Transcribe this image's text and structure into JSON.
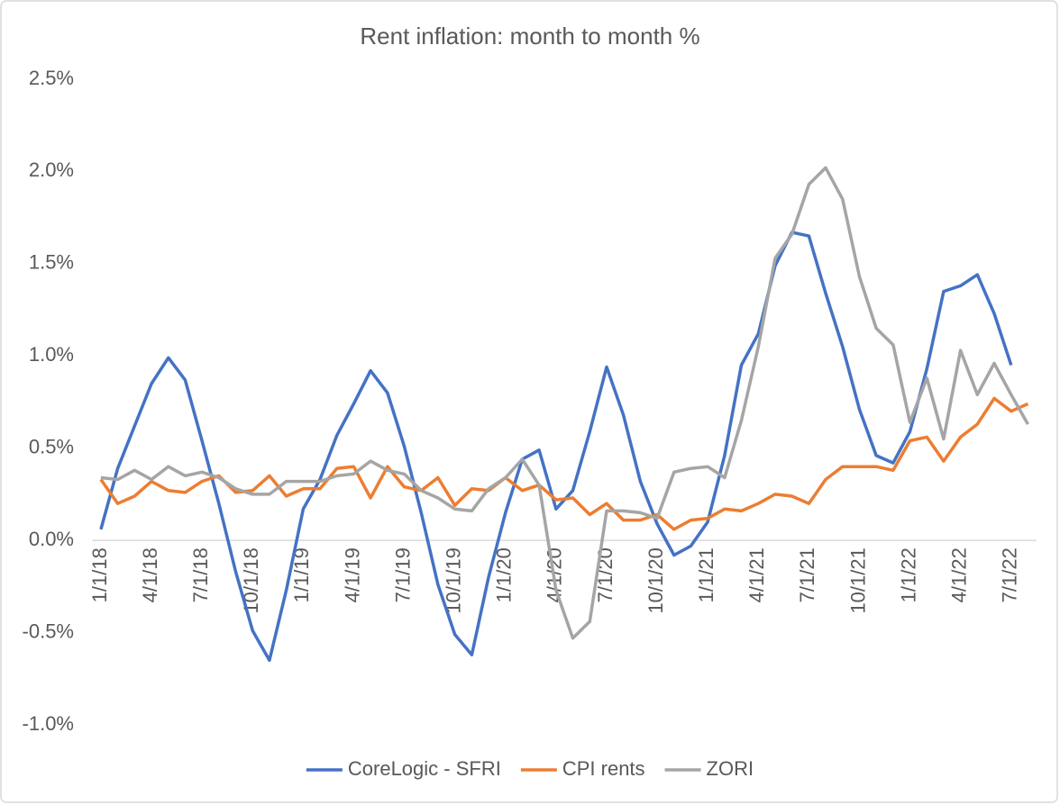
{
  "chart_data": {
    "type": "line",
    "title": "Rent inflation: month to month %",
    "categories": [
      "1/1/18",
      null,
      null,
      "4/1/18",
      null,
      null,
      "7/1/18",
      null,
      null,
      "10/1/18",
      null,
      null,
      "1/1/19",
      null,
      null,
      "4/1/19",
      null,
      null,
      "7/1/19",
      null,
      null,
      "10/1/19",
      null,
      null,
      "1/1/20",
      null,
      null,
      "4/1/20",
      null,
      null,
      "7/1/20",
      null,
      null,
      "10/1/20",
      null,
      null,
      "1/1/21",
      null,
      null,
      "4/1/21",
      null,
      null,
      "7/1/21",
      null,
      null,
      "10/1/21",
      null,
      null,
      "1/1/22",
      null,
      null,
      "4/1/22",
      null,
      null,
      "7/1/22",
      null
    ],
    "series": [
      {
        "name": "CoreLogic - SFRI",
        "color": "#4472c4",
        "values": [
          0.06,
          0.39,
          0.62,
          0.85,
          0.99,
          0.87,
          0.54,
          0.2,
          -0.17,
          -0.49,
          -0.65,
          -0.27,
          0.17,
          0.33,
          0.57,
          0.74,
          0.92,
          0.8,
          0.51,
          0.15,
          -0.24,
          -0.51,
          -0.62,
          -0.2,
          0.15,
          0.44,
          0.49,
          0.17,
          0.27,
          0.59,
          0.94,
          0.68,
          0.32,
          0.09,
          -0.08,
          -0.03,
          0.1,
          0.46,
          0.95,
          1.12,
          1.49,
          1.67,
          1.65,
          1.34,
          1.05,
          0.71,
          0.46,
          0.42,
          0.59,
          0.93,
          1.35,
          1.38,
          1.44,
          1.23,
          0.95,
          null
        ]
      },
      {
        "name": "CPI rents",
        "color": "#ed7d31",
        "values": [
          0.33,
          0.2,
          0.24,
          0.32,
          0.27,
          0.26,
          0.32,
          0.35,
          0.26,
          0.27,
          0.35,
          0.24,
          0.28,
          0.28,
          0.39,
          0.4,
          0.23,
          0.4,
          0.29,
          0.27,
          0.34,
          0.19,
          0.28,
          0.27,
          0.34,
          0.27,
          0.3,
          0.22,
          0.23,
          0.14,
          0.2,
          0.11,
          0.11,
          0.14,
          0.06,
          0.11,
          0.12,
          0.17,
          0.16,
          0.2,
          0.25,
          0.24,
          0.2,
          0.33,
          0.4,
          0.4,
          0.4,
          0.38,
          0.54,
          0.56,
          0.43,
          0.56,
          0.63,
          0.77,
          0.7,
          0.74
        ]
      },
      {
        "name": "ZORI",
        "color": "#a5a5a5",
        "values": [
          0.34,
          0.33,
          0.38,
          0.33,
          0.4,
          0.35,
          0.37,
          0.34,
          0.28,
          0.25,
          0.25,
          0.32,
          0.32,
          0.32,
          0.35,
          0.36,
          0.43,
          0.38,
          0.36,
          0.27,
          0.23,
          0.17,
          0.16,
          0.28,
          0.34,
          0.44,
          0.3,
          -0.27,
          -0.53,
          -0.44,
          0.16,
          0.16,
          0.15,
          0.12,
          0.37,
          0.39,
          0.4,
          0.34,
          0.65,
          1.05,
          1.53,
          1.66,
          1.93,
          2.02,
          1.85,
          1.43,
          1.15,
          1.06,
          0.64,
          0.88,
          0.55,
          1.03,
          0.79,
          0.96,
          0.79,
          0.63
        ]
      }
    ],
    "ylim": [
      -1,
      2.5
    ],
    "yticks": [
      {
        "value": -1,
        "label": "-1.0%"
      },
      {
        "value": -0.5,
        "label": "-0.5%"
      },
      {
        "value": 0,
        "label": "0.0%"
      },
      {
        "value": 0.5,
        "label": "0.5%"
      },
      {
        "value": 1,
        "label": "1.0%"
      },
      {
        "value": 1.5,
        "label": "1.5%"
      },
      {
        "value": 2,
        "label": "2.0%"
      },
      {
        "value": 2.5,
        "label": "2.5%"
      }
    ],
    "grid": false,
    "legend": "bottom"
  }
}
